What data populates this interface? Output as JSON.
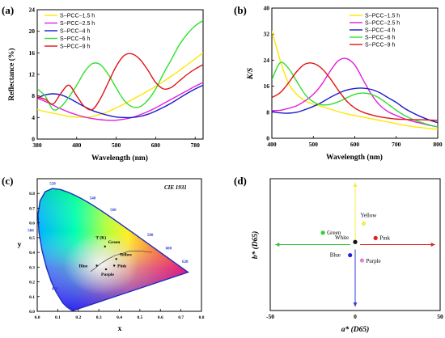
{
  "panels": [
    {
      "label": "(a)",
      "type": "line",
      "xlabel": "Wavelength (nm)",
      "ylabel": "Reflectance (%)",
      "xlim": [
        380,
        800
      ],
      "ylim": [
        0,
        24
      ],
      "xticks": [
        380,
        480,
        580,
        680,
        780
      ],
      "yticks": [
        0,
        4,
        8,
        12,
        16,
        20,
        24
      ],
      "legend_position": "top-left",
      "series": [
        {
          "name": "S−PCC−1.5 h",
          "color": "#ffe600",
          "x": [
            380,
            400,
            420,
            440,
            460,
            480,
            500,
            520,
            540,
            560,
            580,
            600,
            620,
            640,
            660,
            680,
            700,
            720,
            740,
            760,
            780,
            800
          ],
          "y": [
            5.5,
            5.1,
            4.8,
            4.5,
            4.2,
            4.1,
            4.0,
            4.2,
            4.6,
            5.1,
            5.8,
            6.5,
            7.3,
            8.1,
            8.9,
            9.8,
            10.7,
            11.7,
            12.7,
            13.8,
            14.9,
            16.0
          ]
        },
        {
          "name": "S−PCC−2.5 h",
          "color": "#e020e0",
          "x": [
            380,
            400,
            420,
            440,
            460,
            480,
            500,
            520,
            540,
            560,
            580,
            600,
            620,
            640,
            660,
            680,
            700,
            720,
            740,
            760,
            780,
            800
          ],
          "y": [
            7.6,
            7.0,
            6.3,
            5.6,
            5.0,
            4.5,
            4.1,
            3.8,
            3.6,
            3.5,
            3.5,
            3.7,
            4.0,
            4.5,
            5.1,
            5.8,
            6.6,
            7.4,
            8.2,
            9.0,
            9.8,
            10.5
          ]
        },
        {
          "name": "S−PCC−4 h",
          "color": "#1a1acc",
          "x": [
            380,
            400,
            420,
            440,
            460,
            480,
            500,
            520,
            540,
            560,
            580,
            600,
            620,
            640,
            660,
            680,
            700,
            720,
            740,
            760,
            780,
            800
          ],
          "y": [
            7.6,
            8.2,
            8.4,
            8.2,
            7.6,
            6.8,
            6.0,
            5.3,
            4.8,
            4.4,
            4.1,
            4.0,
            4.0,
            4.2,
            4.6,
            5.2,
            5.9,
            6.7,
            7.6,
            8.5,
            9.3,
            10.0
          ]
        },
        {
          "name": "S−PCC−6 h",
          "color": "#30e030",
          "x": [
            380,
            400,
            420,
            440,
            460,
            480,
            500,
            520,
            540,
            560,
            580,
            600,
            620,
            640,
            660,
            680,
            700,
            720,
            740,
            760,
            780,
            800
          ],
          "y": [
            9.3,
            8.0,
            5.5,
            6.0,
            7.8,
            10.0,
            12.5,
            14.0,
            13.8,
            12.0,
            9.5,
            7.2,
            6.0,
            6.0,
            7.2,
            9.3,
            12.2,
            14.8,
            17.5,
            19.5,
            21.0,
            22.0
          ]
        },
        {
          "name": "S−PCC−9 h",
          "color": "#e01515",
          "x": [
            380,
            400,
            420,
            440,
            460,
            480,
            500,
            520,
            540,
            560,
            580,
            600,
            620,
            640,
            660,
            680,
            700,
            720,
            740,
            760,
            780,
            800
          ],
          "y": [
            7.8,
            7.4,
            6.5,
            8.5,
            10.0,
            8.0,
            6.0,
            5.5,
            7.5,
            10.5,
            13.5,
            15.5,
            15.8,
            14.8,
            12.8,
            10.5,
            9.3,
            9.6,
            10.8,
            12.0,
            13.0,
            13.8
          ]
        }
      ]
    },
    {
      "label": "(b)",
      "type": "line",
      "xlabel": "Wavelength (nm)",
      "ylabel": "K/S",
      "xlim": [
        400,
        800
      ],
      "ylim": [
        0,
        40
      ],
      "xticks": [
        400,
        500,
        600,
        700,
        800
      ],
      "yticks": [
        0,
        8,
        16,
        24,
        32,
        40
      ],
      "legend_position": "top-right",
      "series": [
        {
          "name": "S−PCC−1.5 h",
          "color": "#ffe600",
          "x": [
            400,
            420,
            440,
            460,
            480,
            500,
            520,
            540,
            560,
            580,
            600,
            620,
            640,
            660,
            680,
            700,
            720,
            740,
            760,
            780,
            800
          ],
          "y": [
            33,
            24,
            17,
            13.5,
            11.5,
            10.5,
            9.8,
            9.0,
            8.2,
            7.5,
            7.0,
            6.5,
            6.0,
            5.5,
            5.0,
            4.5,
            4.0,
            3.6,
            3.3,
            3.0,
            2.7
          ]
        },
        {
          "name": "S−PCC−2.5 h",
          "color": "#e020e0",
          "x": [
            400,
            420,
            440,
            460,
            480,
            500,
            520,
            540,
            560,
            580,
            600,
            620,
            640,
            660,
            680,
            700,
            720,
            740,
            760,
            780,
            800
          ],
          "y": [
            8.5,
            8.6,
            9.2,
            10.0,
            11.5,
            13.5,
            16.5,
            20.5,
            23.8,
            24.5,
            22.5,
            18.0,
            13.5,
            10.2,
            8.2,
            7.0,
            6.0,
            5.2,
            4.6,
            4.0,
            3.5
          ]
        },
        {
          "name": "S−PCC−4 h",
          "color": "#1a1acc",
          "x": [
            400,
            420,
            440,
            460,
            480,
            500,
            520,
            540,
            560,
            580,
            600,
            620,
            640,
            660,
            680,
            700,
            720,
            740,
            760,
            780,
            800
          ],
          "y": [
            8.2,
            7.8,
            7.7,
            8.0,
            8.8,
            9.8,
            11.0,
            12.5,
            13.8,
            14.8,
            15.3,
            15.4,
            15.0,
            14.0,
            12.5,
            11.0,
            9.2,
            7.8,
            6.6,
            5.6,
            4.8
          ]
        },
        {
          "name": "S−PCC−6 h",
          "color": "#30e030",
          "x": [
            400,
            420,
            440,
            460,
            480,
            500,
            520,
            540,
            560,
            580,
            600,
            620,
            640,
            660,
            680,
            700,
            720,
            740,
            760,
            780,
            800
          ],
          "y": [
            18,
            23.2,
            21.5,
            17.5,
            13.5,
            11.2,
            10.3,
            10.4,
            11.2,
            12.4,
            13.5,
            13.9,
            13.5,
            12.3,
            10.5,
            8.6,
            7.0,
            5.8,
            4.9,
            4.1,
            3.5
          ]
        },
        {
          "name": "S−PCC−9 h",
          "color": "#e01515",
          "x": [
            400,
            420,
            440,
            460,
            480,
            500,
            520,
            540,
            560,
            580,
            600,
            620,
            640,
            660,
            680,
            700,
            720,
            740,
            760,
            780,
            800
          ],
          "y": [
            12.5,
            14.0,
            17.0,
            20.5,
            22.8,
            23.0,
            21.5,
            18.5,
            14.8,
            11.5,
            9.3,
            8.0,
            7.2,
            6.6,
            6.2,
            5.9,
            5.8,
            5.7,
            5.7,
            5.6,
            5.5
          ]
        }
      ]
    },
    {
      "label": "(c)",
      "type": "scatter",
      "title": "CIE 1931",
      "xlabel": "x",
      "ylabel": "y",
      "xlim": [
        0.0,
        0.8
      ],
      "ylim": [
        0.0,
        0.9
      ],
      "xticks": [
        "0.0",
        "0.1",
        "0.2",
        "0.3",
        "0.4",
        "0.5",
        "0.6",
        "0.7",
        "0.8"
      ],
      "yticks": [
        "0.0",
        "0.1",
        "0.2",
        "0.3",
        "0.4",
        "0.5",
        "0.6",
        "0.7",
        "0.8"
      ],
      "wavelength_labels": [
        "460",
        "480",
        "500",
        "520",
        "540",
        "560",
        "580",
        "600",
        "620"
      ],
      "planckian_label": "T (K)",
      "points": [
        {
          "label": "Green",
          "x": 0.33,
          "y": 0.44
        },
        {
          "label": "Yellow",
          "x": 0.385,
          "y": 0.355
        },
        {
          "label": "Pink",
          "x": 0.375,
          "y": 0.31
        },
        {
          "label": "Blue",
          "x": 0.29,
          "y": 0.31
        },
        {
          "label": "Purple",
          "x": 0.335,
          "y": 0.285
        }
      ]
    },
    {
      "label": "(d)",
      "type": "scatter",
      "xlabel": "a* (D65)",
      "ylabel": "b* (D65)",
      "xlim": [
        -50,
        50
      ],
      "ylim": [
        -50,
        50
      ],
      "xticks": [
        -50,
        0,
        50
      ],
      "points": [
        {
          "label": "Yellow",
          "a": 5,
          "b": 16,
          "color": "#f4ec50"
        },
        {
          "label": "Green",
          "a": -19,
          "b": 9,
          "color": "#30d030"
        },
        {
          "label": "White",
          "a": 0,
          "b": 2,
          "color": "#111111"
        },
        {
          "label": "Pink",
          "a": 12,
          "b": 5,
          "color": "#e02020"
        },
        {
          "label": "Blue",
          "a": -3,
          "b": -8,
          "color": "#2020e0"
        },
        {
          "label": "Purple",
          "a": 4,
          "b": -12,
          "color": "#e080e0"
        }
      ]
    }
  ]
}
